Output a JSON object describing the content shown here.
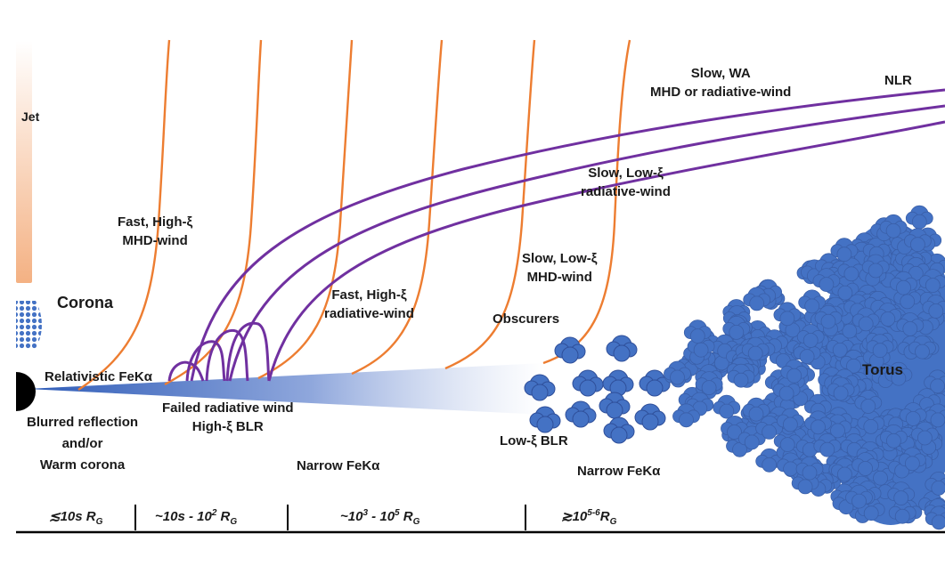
{
  "labels": {
    "jet": "Jet",
    "corona": "Corona",
    "nlr": "NLR",
    "torus": "Torus",
    "slow_wa_line1": "Slow, WA",
    "slow_wa_line2": "MHD or radiative-wind",
    "slow_low_xi_rad_line1": "Slow, Low-ξ",
    "slow_low_xi_rad_line2": "radiative-wind",
    "fast_high_xi_mhd_line1": "Fast, High-ξ",
    "fast_high_xi_mhd_line2": "MHD-wind",
    "fast_high_xi_rad_line1": "Fast, High-ξ",
    "fast_high_xi_rad_line2": "radiative-wind",
    "slow_low_xi_mhd_line1": "Slow, Low-ξ",
    "slow_low_xi_mhd_line2": "MHD-wind",
    "obscurers": "Obscurers",
    "relativistic_feka": "Relativistic FeKα",
    "failed_wind_line1": "Failed radiative wind",
    "failed_wind_line2": "High-ξ BLR",
    "blurred_line1": "Blurred reflection",
    "blurred_line2": "and/or",
    "blurred_line3": "Warm corona",
    "narrow_feka_1": "Narrow FeKα",
    "narrow_feka_2": "Narrow FeKα",
    "low_xi_blr": "Low-ξ BLR"
  },
  "scale": [
    {
      "prefix": "≲10s R",
      "sub": "G",
      "sup": "",
      "tail": ""
    },
    {
      "prefix": "~10s - 10",
      "sup": "2",
      "mid": " R",
      "sub": "G"
    },
    {
      "prefix": "~10",
      "sup": "3",
      "mid": " - 10",
      "sup2": "5",
      "mid2": " R",
      "sub": "G"
    },
    {
      "prefix": "≳10",
      "sup": "5-6",
      "mid": "R",
      "sub": "G"
    }
  ],
  "colors": {
    "outflow_orange": "#ED7D31",
    "purple_wind": "#7030A0",
    "cloud_blue": "#4472C4",
    "disk_blue": "#4472C4",
    "jet_peach": "#F4B183",
    "black_hole": "#000000"
  }
}
